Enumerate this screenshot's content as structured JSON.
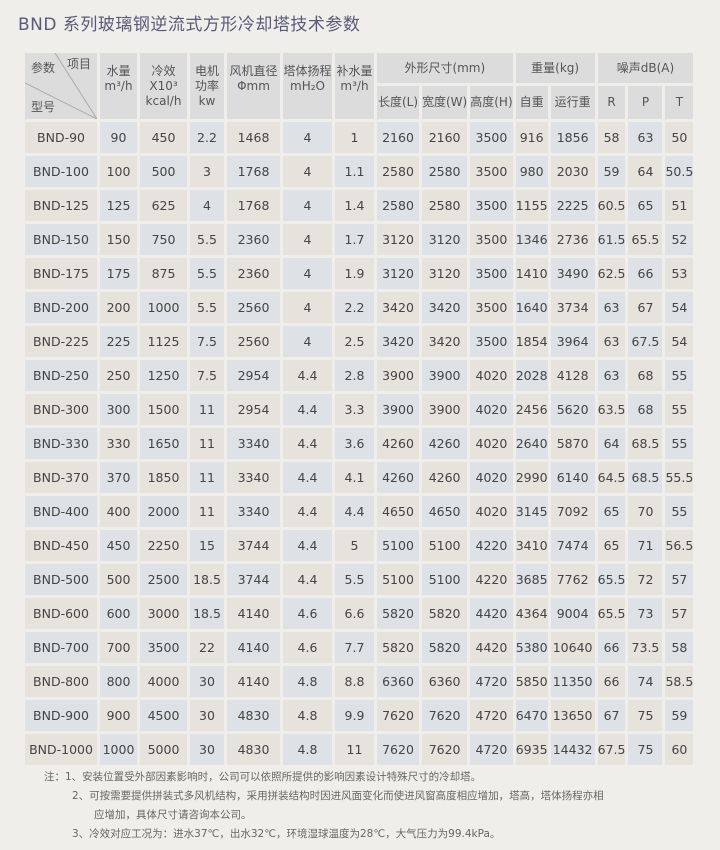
{
  "title": "BND 系列玻璃钢逆流式方形冷却塔技术参数",
  "header": {
    "corner_top": "项目",
    "corner_mid": "参数",
    "corner_bottom": "型号",
    "water": "水量",
    "water_unit": "m³/h",
    "cool": "冷效",
    "cool_mult": "X10³",
    "cool_unit": "kcal/h",
    "motor": "电机",
    "motor2": "功率",
    "motor_unit": "kw",
    "fan": "风机直径",
    "fan_unit": "Φmm",
    "head": "塔体扬程",
    "head_unit": "mH₂O",
    "makeup": "补水量",
    "makeup_unit": "m³/h",
    "dims": "外形尺寸(mm)",
    "dim_l": "长度(L)",
    "dim_w": "宽度(W)",
    "dim_h": "高度(H)",
    "weight": "重量(kg)",
    "w_self": "自重",
    "w_run": "运行重",
    "noise": "噪声dB(A)",
    "n_r": "R",
    "n_p": "P",
    "n_t": "T"
  },
  "rows": [
    [
      "BND-90",
      "90",
      "450",
      "2.2",
      "1468",
      "4",
      "1",
      "2160",
      "2160",
      "3500",
      "916",
      "1856",
      "58",
      "63",
      "50"
    ],
    [
      "BND-100",
      "100",
      "500",
      "3",
      "1768",
      "4",
      "1.1",
      "2580",
      "2580",
      "3500",
      "980",
      "2030",
      "59",
      "64",
      "50.5"
    ],
    [
      "BND-125",
      "125",
      "625",
      "4",
      "1768",
      "4",
      "1.4",
      "2580",
      "2580",
      "3500",
      "1155",
      "2225",
      "60.5",
      "65",
      "51"
    ],
    [
      "BND-150",
      "150",
      "750",
      "5.5",
      "2360",
      "4",
      "1.7",
      "3120",
      "3120",
      "3500",
      "1346",
      "2736",
      "61.5",
      "65.5",
      "52"
    ],
    [
      "BND-175",
      "175",
      "875",
      "5.5",
      "2360",
      "4",
      "1.9",
      "3120",
      "3120",
      "3500",
      "1410",
      "3490",
      "62.5",
      "66",
      "53"
    ],
    [
      "BND-200",
      "200",
      "1000",
      "5.5",
      "2560",
      "4",
      "2.2",
      "3420",
      "3420",
      "3500",
      "1640",
      "3734",
      "63",
      "67",
      "54"
    ],
    [
      "BND-225",
      "225",
      "1125",
      "7.5",
      "2560",
      "4",
      "2.5",
      "3420",
      "3420",
      "3500",
      "1854",
      "3964",
      "63",
      "67.5",
      "54"
    ],
    [
      "BND-250",
      "250",
      "1250",
      "7.5",
      "2954",
      "4.4",
      "2.8",
      "3900",
      "3900",
      "4020",
      "2028",
      "4128",
      "63",
      "68",
      "55"
    ],
    [
      "BND-300",
      "300",
      "1500",
      "11",
      "2954",
      "4.4",
      "3.3",
      "3900",
      "3900",
      "4020",
      "2456",
      "5620",
      "63.5",
      "68",
      "55"
    ],
    [
      "BND-330",
      "330",
      "1650",
      "11",
      "3340",
      "4.4",
      "3.6",
      "4260",
      "4260",
      "4020",
      "2640",
      "5870",
      "64",
      "68.5",
      "55"
    ],
    [
      "BND-370",
      "370",
      "1850",
      "11",
      "3340",
      "4.4",
      "4.1",
      "4260",
      "4260",
      "4020",
      "2990",
      "6140",
      "64.5",
      "68.5",
      "55.5"
    ],
    [
      "BND-400",
      "400",
      "2000",
      "11",
      "3340",
      "4.4",
      "4.4",
      "4650",
      "4650",
      "4020",
      "3145",
      "7092",
      "65",
      "70",
      "55"
    ],
    [
      "BND-450",
      "450",
      "2250",
      "15",
      "3744",
      "4.4",
      "5",
      "5100",
      "5100",
      "4220",
      "3410",
      "7474",
      "65",
      "71",
      "56.5"
    ],
    [
      "BND-500",
      "500",
      "2500",
      "18.5",
      "3744",
      "4.4",
      "5.5",
      "5100",
      "5100",
      "4220",
      "3685",
      "7762",
      "65.5",
      "72",
      "57"
    ],
    [
      "BND-600",
      "600",
      "3000",
      "18.5",
      "4140",
      "4.6",
      "6.6",
      "5820",
      "5820",
      "4420",
      "4364",
      "9004",
      "65.5",
      "73",
      "57"
    ],
    [
      "BND-700",
      "700",
      "3500",
      "22",
      "4140",
      "4.6",
      "7.7",
      "5820",
      "5820",
      "4420",
      "5380",
      "10640",
      "66",
      "73.5",
      "58"
    ],
    [
      "BND-800",
      "800",
      "4000",
      "30",
      "4140",
      "4.8",
      "8.8",
      "6360",
      "6360",
      "4720",
      "5850",
      "11350",
      "66",
      "74",
      "58.5"
    ],
    [
      "BND-900",
      "900",
      "4500",
      "30",
      "4830",
      "4.8",
      "9.9",
      "7620",
      "7620",
      "4720",
      "6470",
      "13650",
      "67",
      "75",
      "59"
    ],
    [
      "BND-1000",
      "1000",
      "5000",
      "30",
      "4830",
      "4.8",
      "11",
      "7620",
      "7620",
      "4720",
      "6935",
      "14432",
      "67.5",
      "75",
      "60"
    ]
  ],
  "notes": {
    "label": "注：",
    "n1": "1、安装位置受外部因素影响时，公司可以依照所提供的影响因素设计特殊尺寸的冷却塔。",
    "n2": "2、可按需要提供拼装式多风机结构，采用拼装结构时因进风面变化而使进风窗高度相应增加，塔高，塔体扬程亦相",
    "n2b": "应增加，具体尺寸请咨询本公司。",
    "n3": "3、冷效对应工况为：进水37℃，出水32℃，环境湿球温度为28℃，大气压力为99.4kPa。"
  },
  "colors": {
    "cell_a": "#e6e3dd",
    "cell_b": "#dee2e7",
    "header": "#dcdcdc",
    "title": "#5a5a78"
  }
}
